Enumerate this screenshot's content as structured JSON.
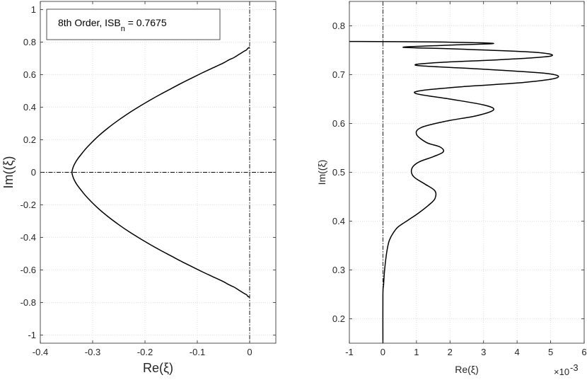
{
  "chart_data": [
    {
      "type": "line",
      "xlabel": "Re(ξ)",
      "ylabel": "Im((ξ)",
      "xlim": [
        -0.4,
        0.05
      ],
      "ylim": [
        -1.05,
        1.05
      ],
      "xticks": [
        "-0.4",
        "-0.3",
        "-0.2",
        "-0.1",
        "0"
      ],
      "xtick_values": [
        -0.4,
        -0.3,
        -0.2,
        -0.1,
        0
      ],
      "yticks": [
        "-1",
        "-0.8",
        "-0.6",
        "-0.4",
        "-0.2",
        "0",
        "0.2",
        "0.4",
        "0.6",
        "0.8",
        "1"
      ],
      "ytick_values": [
        -1,
        -0.8,
        -0.6,
        -0.4,
        -0.2,
        0,
        0.2,
        0.4,
        0.6,
        0.8,
        1
      ],
      "grid": true,
      "legend_box": {
        "prefix": "8th Order,   ISB",
        "subscript": "n",
        "suffix": " = 0.7675",
        "placement": "top-left"
      },
      "reference_lines": {
        "x": 0,
        "y": 0,
        "style": "dash-dot"
      },
      "series": [
        {
          "x": [
            0.0,
            -0.002,
            -0.004,
            -0.006,
            -0.01,
            -0.02,
            -0.03,
            -0.04,
            -0.05,
            -0.07,
            -0.09,
            -0.11,
            -0.13,
            -0.15,
            -0.17,
            -0.19,
            -0.21,
            -0.23,
            -0.25,
            -0.27,
            -0.29,
            -0.31,
            -0.32,
            -0.33,
            -0.335,
            -0.338,
            -0.3395,
            -0.338,
            -0.335,
            -0.33,
            -0.32,
            -0.31,
            -0.29,
            -0.27,
            -0.25,
            -0.23,
            -0.21,
            -0.19,
            -0.17,
            -0.15,
            -0.13,
            -0.11,
            -0.09,
            -0.07,
            -0.05,
            -0.04,
            -0.03,
            -0.02,
            -0.01,
            -0.006,
            -0.004,
            -0.002,
            0.0
          ],
          "y": [
            0.7675,
            0.765,
            0.76,
            0.752,
            0.745,
            0.725,
            0.705,
            0.69,
            0.672,
            0.642,
            0.612,
            0.58,
            0.548,
            0.514,
            0.48,
            0.444,
            0.406,
            0.366,
            0.322,
            0.274,
            0.22,
            0.156,
            0.118,
            0.076,
            0.048,
            0.024,
            0.0,
            -0.024,
            -0.048,
            -0.076,
            -0.118,
            -0.156,
            -0.22,
            -0.274,
            -0.322,
            -0.366,
            -0.406,
            -0.444,
            -0.48,
            -0.514,
            -0.548,
            -0.58,
            -0.612,
            -0.642,
            -0.672,
            -0.69,
            -0.705,
            -0.725,
            -0.745,
            -0.752,
            -0.76,
            -0.765,
            -0.7675
          ]
        }
      ]
    },
    {
      "type": "line",
      "xlabel": "Re(ξ)",
      "ylabel": "Im((ξ)",
      "x_exponent": "×10",
      "x_exponent_power": "-3",
      "xlim": [
        -1,
        6
      ],
      "ylim": [
        0.15,
        0.85
      ],
      "xticks": [
        "-1",
        "0",
        "1",
        "2",
        "3",
        "4",
        "5",
        "6"
      ],
      "xtick_values": [
        -1,
        0,
        1,
        2,
        3,
        4,
        5,
        6
      ],
      "yticks": [
        "0.2",
        "0.3",
        "0.4",
        "0.5",
        "0.6",
        "0.7",
        "0.8"
      ],
      "ytick_values": [
        0.2,
        0.3,
        0.4,
        0.5,
        0.6,
        0.7,
        0.8
      ],
      "grid": true,
      "reference_lines": {
        "x": 0,
        "style": "dash-dot"
      },
      "series": [
        {
          "x": [
            0.0,
            0.0,
            0.02,
            0.05,
            0.1,
            0.15,
            0.2,
            0.3,
            0.45,
            0.75,
            1.05,
            1.35,
            1.55,
            1.55,
            1.25,
            0.95,
            0.85,
            0.9,
            1.1,
            1.5,
            1.8,
            1.7,
            1.3,
            1.0,
            1.15,
            1.9,
            2.8,
            3.3,
            3.0,
            2.0,
            1.0,
            1.2,
            2.5,
            4.2,
            5.2,
            4.8,
            2.8,
            1.0,
            1.7,
            3.6,
            5.0,
            4.5,
            2.0,
            0.6,
            1.8,
            3.3,
            1.5,
            -1.0
          ],
          "y": [
            0.15,
            0.25,
            0.27,
            0.3,
            0.33,
            0.35,
            0.362,
            0.375,
            0.388,
            0.402,
            0.416,
            0.432,
            0.446,
            0.462,
            0.476,
            0.489,
            0.5,
            0.512,
            0.522,
            0.532,
            0.542,
            0.552,
            0.561,
            0.578,
            0.592,
            0.605,
            0.616,
            0.628,
            0.638,
            0.65,
            0.661,
            0.668,
            0.676,
            0.684,
            0.694,
            0.703,
            0.712,
            0.719,
            0.725,
            0.731,
            0.738,
            0.746,
            0.753,
            0.756,
            0.76,
            0.764,
            0.767,
            0.768
          ]
        }
      ]
    }
  ]
}
